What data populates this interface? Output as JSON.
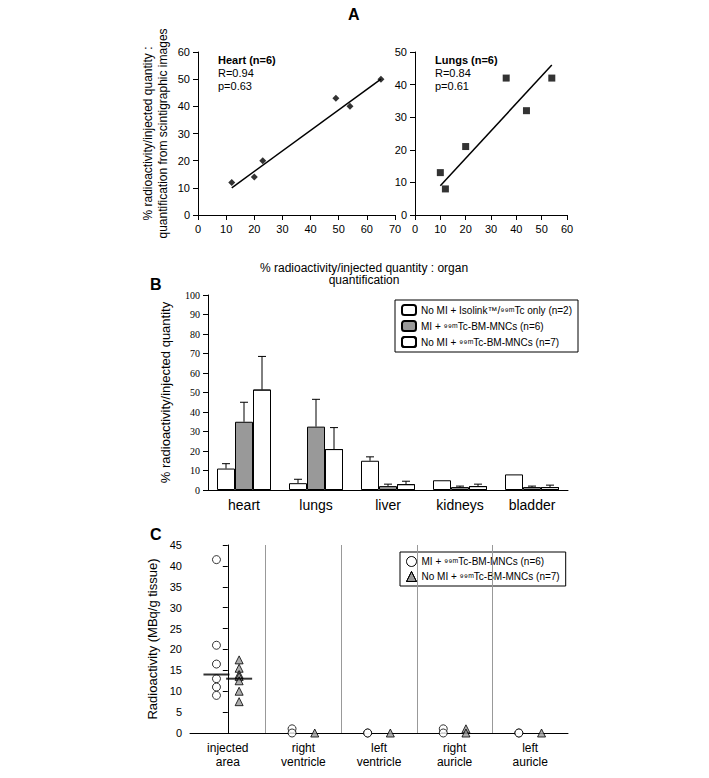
{
  "chart_data": [
    {
      "type": "scatter",
      "panel": "A",
      "title": "Heart (n=6)",
      "annotations": [
        "R=0.94",
        "p=0.63"
      ],
      "xlabel": "% radioactivity/injected quantity : organ\nquantification",
      "ylabel": "% radioactivity/injected quantity :\nquantification from scintigraphic images",
      "x": [
        12,
        20,
        23,
        49,
        54,
        65
      ],
      "values": [
        12,
        14,
        20,
        43,
        40,
        50
      ],
      "fit": {
        "x": [
          12,
          65
        ],
        "y": [
          10,
          50
        ]
      },
      "marker": "diamond",
      "color": "#000000",
      "xlim": [
        0,
        70
      ],
      "xticks": [
        0,
        10,
        20,
        30,
        40,
        50,
        60,
        70
      ],
      "ylim": [
        0,
        60
      ],
      "yticks": [
        0,
        10,
        20,
        30,
        40,
        50,
        60
      ]
    },
    {
      "type": "scatter",
      "title": "Lungs (n=6)",
      "annotations": [
        "R=0.84",
        "p=0.61"
      ],
      "x": [
        10,
        12,
        20,
        36,
        44,
        54
      ],
      "values": [
        13,
        8,
        21,
        42,
        32,
        42
      ],
      "fit": {
        "x": [
          10,
          54
        ],
        "y": [
          9,
          46
        ]
      },
      "marker": "square",
      "color": "#000000",
      "xlim": [
        0,
        60
      ],
      "xticks": [
        0,
        10,
        20,
        30,
        40,
        50,
        60
      ],
      "ylim": [
        0,
        50
      ],
      "yticks": [
        0,
        10,
        20,
        30,
        40,
        50
      ]
    },
    {
      "type": "bar",
      "panel": "B",
      "ylabel": "% radioactivity/injected quantity",
      "categories": [
        "heart",
        "lungs",
        "liver",
        "kidneys",
        "bladder"
      ],
      "series": [
        {
          "name": "No MI + Isolink™/⁹⁹ᵐTc only (n=2)",
          "color": "#ffffff",
          "values": [
            11,
            3.5,
            15,
            5,
            8
          ],
          "errors": [
            2.5,
            2,
            2,
            null,
            null
          ]
        },
        {
          "name": "MI + ⁹⁹ᵐTc-BM-MNCs (n=6)",
          "color": "#999999",
          "values": [
            35,
            32.5,
            2,
            1.5,
            1.5
          ],
          "errors": [
            10,
            14,
            1,
            0.5,
            0.5
          ]
        },
        {
          "name": "No MI + ⁹⁹ᵐTc-BM-MNCs (n=7)",
          "color": "#ffffff",
          "line_style": "diagonal",
          "values": [
            51.5,
            21,
            3,
            2,
            1.5
          ],
          "errors": [
            17,
            11,
            1.5,
            1,
            1
          ]
        }
      ],
      "ylim": [
        0,
        100
      ],
      "yticks": [
        0,
        10,
        20,
        30,
        40,
        50,
        60,
        70,
        80,
        90,
        100
      ],
      "legend": "upper right"
    },
    {
      "type": "scatter",
      "panel": "C",
      "ylabel": "Radioactivity (MBq/g tissue)",
      "categories": [
        "injected area",
        "right ventricle",
        "left ventricle",
        "right auricle",
        "left auricle"
      ],
      "series": [
        {
          "name": "MI + ⁹⁹ᵐTc-BM-MNCs (n=6)",
          "marker": "circle",
          "color": "#ffffff",
          "values": [
            [
              41.5,
              21,
              16.5,
              13,
              11,
              9
            ],
            [
              1,
              0
            ],
            [
              0,
              0
            ],
            [
              1,
              0
            ],
            [
              0,
              0
            ]
          ],
          "medians": [
            14,
            null,
            null,
            null,
            null
          ]
        },
        {
          "name": "No MI + ⁹⁹ᵐTc-BM-MNCs (n=7)",
          "marker": "triangle",
          "color": "#999999",
          "values": [
            [
              17.5,
              15.5,
              14,
              13.5,
              12.5,
              10,
              7.5
            ],
            [
              0
            ],
            [
              0
            ],
            [
              1,
              0
            ],
            [
              0
            ]
          ],
          "medians": [
            13,
            null,
            null,
            null,
            null
          ]
        }
      ],
      "ylim": [
        0,
        45
      ],
      "yticks": [
        0,
        5,
        10,
        15,
        20,
        25,
        30,
        35,
        40,
        45
      ],
      "legend": "upper right"
    }
  ]
}
